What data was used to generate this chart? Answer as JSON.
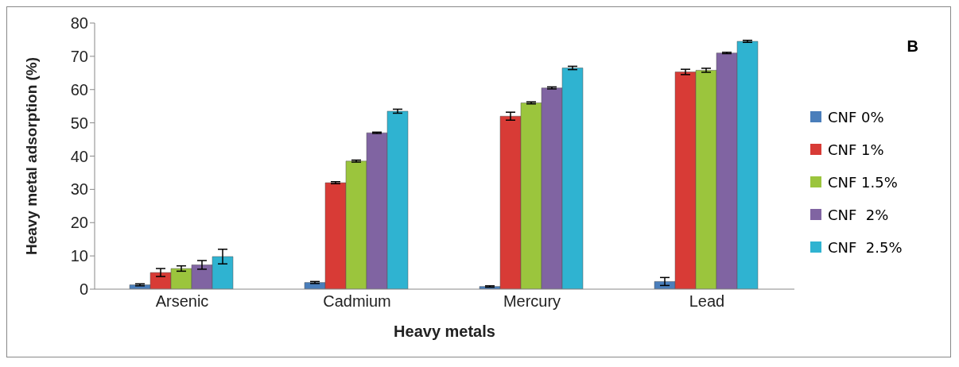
{
  "chart_data": {
    "type": "bar",
    "xlabel": "Heavy metals",
    "ylabel": "Heavy metal adsorption  (%)",
    "categories": [
      "Arsenic",
      "Cadmium",
      "Mercury",
      "Lead"
    ],
    "series": [
      {
        "name": "CNF 0%",
        "color": "#4a7ebb",
        "values": [
          1.3,
          2,
          0.8,
          2.3
        ],
        "errors": [
          0.3,
          0.3,
          0.2,
          1.2
        ]
      },
      {
        "name": "CNF 1%",
        "color": "#d83b36",
        "values": [
          5,
          32,
          52,
          65.3
        ],
        "errors": [
          1.2,
          0.3,
          1.2,
          0.8
        ]
      },
      {
        "name": "CNF 1.5%",
        "color": "#9bc53d",
        "values": [
          6.2,
          38.5,
          56,
          65.8
        ],
        "errors": [
          0.8,
          0.3,
          0.3,
          0.6
        ]
      },
      {
        "name": "CNF  2%",
        "color": "#8064a2",
        "values": [
          7.3,
          47,
          60.5,
          71
        ],
        "errors": [
          1.3,
          0.2,
          0.3,
          0.2
        ]
      },
      {
        "name": "CNF  2.5%",
        "color": "#2fb3d1",
        "values": [
          9.8,
          53.5,
          66.5,
          74.5
        ],
        "errors": [
          2.2,
          0.6,
          0.5,
          0.3
        ]
      }
    ],
    "ylim": [
      0,
      80
    ],
    "yticks": [
      0,
      10,
      20,
      30,
      40,
      50,
      60,
      70,
      80
    ],
    "annotations": [
      "B"
    ],
    "legend": "right",
    "grid": false
  }
}
